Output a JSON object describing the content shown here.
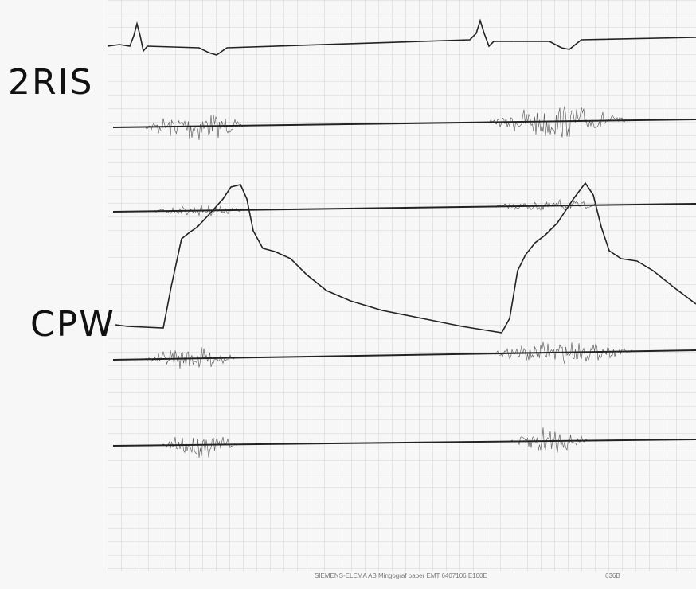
{
  "labels": {
    "top": "2RIS",
    "middle": "CPW"
  },
  "footer": {
    "maker": "SIEMENS-ELEMA AB",
    "paper": "Mingograf paper EMT 6407106 E100E",
    "code": "636B"
  }
}
